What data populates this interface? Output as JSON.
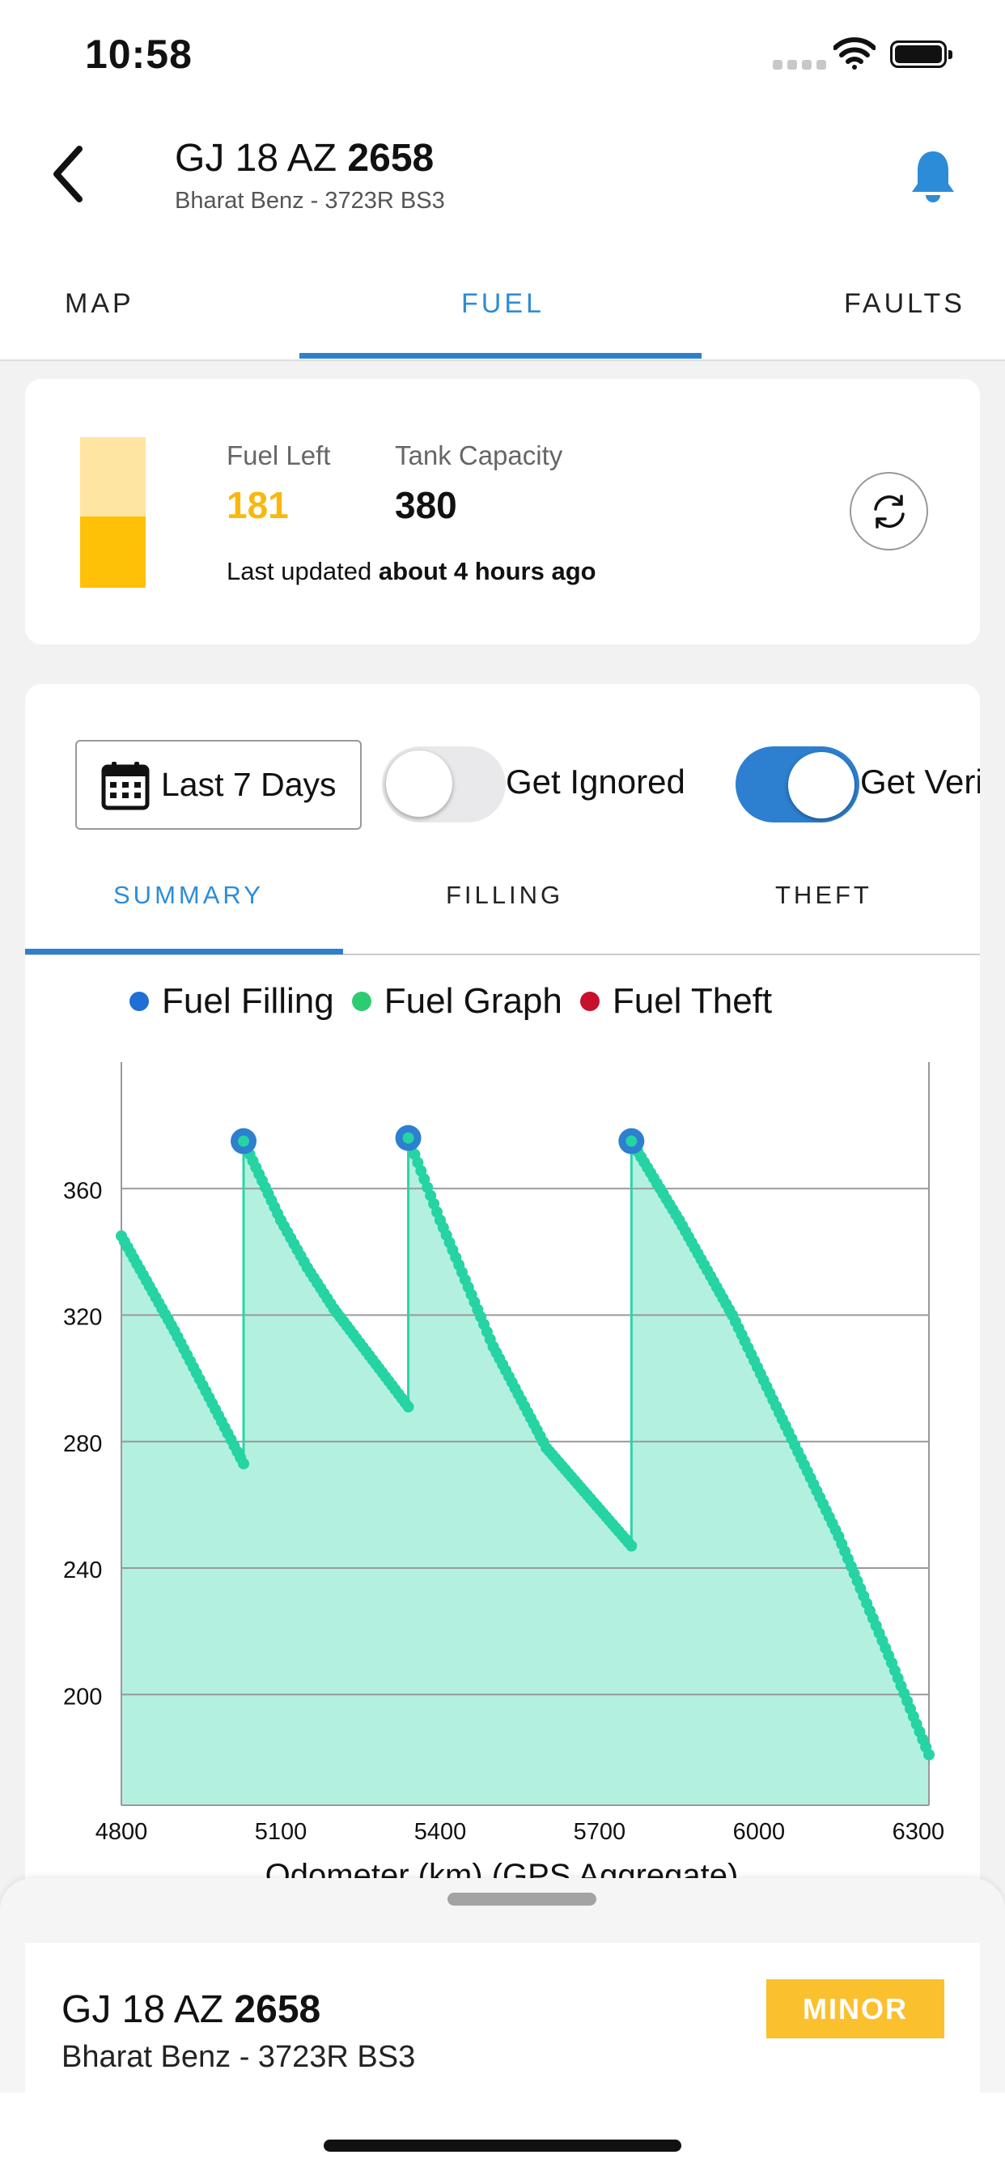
{
  "status_bar": {
    "time": "10:58"
  },
  "header": {
    "plate_prefix": "GJ 18 AZ ",
    "plate_number": "2658",
    "subtitle": "Bharat Benz - 3723R BS3"
  },
  "tabs": [
    {
      "label": "MAP",
      "active": false
    },
    {
      "label": "FUEL",
      "active": true
    },
    {
      "label": "FAULTS",
      "active": false
    }
  ],
  "fuel_card": {
    "fuel_left_label": "Fuel Left",
    "fuel_left_value": "181",
    "tank_capacity_label": "Tank Capacity",
    "tank_capacity_value": "380",
    "updated_prefix": "Last updated ",
    "updated_value": "about 4 hours ago",
    "fill_level": 0.47
  },
  "filters": {
    "date_range": "Last 7 Days",
    "ignored_label": "Get Ignored",
    "ignored_on": false,
    "verified_label": "Get Veri",
    "verified_on": true
  },
  "subtabs": [
    {
      "label": "SUMMARY",
      "active": true
    },
    {
      "label": "FILLING",
      "active": false
    },
    {
      "label": "THEFT",
      "active": false
    }
  ],
  "legend": [
    {
      "label": "Fuel Filling",
      "color": "#1f6fd6"
    },
    {
      "label": "Fuel Graph",
      "color": "#2ecc71"
    },
    {
      "label": "Fuel Theft",
      "color": "#c8102e"
    }
  ],
  "chart_data": {
    "type": "area",
    "xlabel": "Odometer (km) (GPS Aggregate)",
    "ylabel": "",
    "xlim": [
      4800,
      6320
    ],
    "ylim": [
      165,
      400
    ],
    "x_ticks": [
      4800,
      5100,
      5400,
      5700,
      6000,
      6300
    ],
    "y_ticks": [
      200,
      240,
      280,
      320,
      360
    ],
    "grid": true,
    "series": [
      {
        "name": "Fuel Graph",
        "x": [
          4800,
          4900,
          5030,
          5030,
          5100,
          5150,
          5200,
          5340,
          5340,
          5400,
          5500,
          5600,
          5760,
          5760,
          5850,
          5950,
          6050,
          6150,
          6250,
          6320
        ],
        "y": [
          345,
          315,
          273,
          375,
          350,
          335,
          322,
          291,
          376,
          350,
          310,
          278,
          247,
          375,
          350,
          320,
          285,
          250,
          210,
          181
        ]
      },
      {
        "name": "Fuel Filling",
        "x": [
          5030,
          5340,
          5760
        ],
        "y": [
          375,
          376,
          375
        ]
      }
    ]
  },
  "bottom_sheet": {
    "plate_prefix": "GJ 18 AZ ",
    "plate_number": "2658",
    "subtitle": "Bharat Benz - 3723R BS3",
    "severity": "MINOR"
  }
}
